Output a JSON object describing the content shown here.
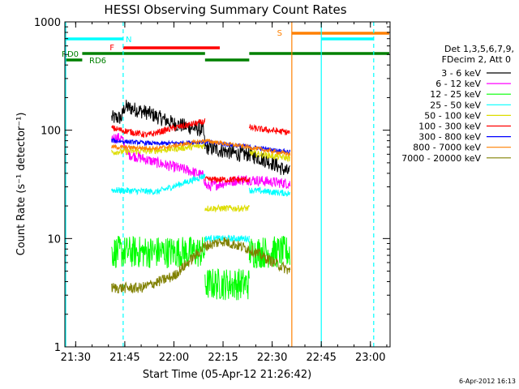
{
  "chart_data": {
    "type": "line",
    "title": "HESSI Observing Summary Count Rates",
    "xlabel": "Start Time (05-Apr-12 21:26:42)",
    "ylabel": "Count Rate (s⁻¹ detector⁻¹)",
    "y_scale": "log",
    "ylim": [
      1,
      1000
    ],
    "x_range_minutes": [
      "21:26:42",
      "23:06:00"
    ],
    "x_ticks": [
      "21:30",
      "21:45",
      "22:00",
      "22:15",
      "22:30",
      "22:45",
      "23:00"
    ],
    "y_ticks": [
      "1",
      "10",
      "100",
      "1000"
    ],
    "legend_header": [
      "Det 1,3,5,6,7,9,",
      "FDecim 2, Att 0"
    ],
    "grid": false,
    "timestamp": "6-Apr-2012 16:13",
    "flag_labels": {
      "N": "N",
      "F": "F",
      "S": "S",
      "RD0": "RD0",
      "RD6": "RD6"
    },
    "flag_colors": {
      "N": "#00ffff",
      "F": "#ff0000",
      "S": "#ff8000",
      "RD": "#008000"
    },
    "flags": {
      "N": [
        [
          "21:26:42",
          "21:44:30"
        ],
        [
          "22:45:00",
          "23:01:00"
        ]
      ],
      "F": [
        [
          "21:44:30",
          "22:14:00"
        ]
      ],
      "S": [
        [
          "22:36:00",
          "23:06:00"
        ]
      ],
      "RD0": [
        [
          "21:32:00",
          "22:09:30"
        ],
        [
          "22:23:00",
          "23:06:00"
        ]
      ],
      "RD6": [
        [
          "21:26:42",
          "21:32:00"
        ],
        [
          "22:09:30",
          "22:23:00"
        ]
      ]
    },
    "vlines": [
      {
        "t": "21:26:42",
        "color": "#00ffff",
        "style": "solid"
      },
      {
        "t": "21:44:30",
        "color": "#00ffff",
        "style": "dashed"
      },
      {
        "t": "22:36:00",
        "color": "#ff8000",
        "style": "solid"
      },
      {
        "t": "22:45:00",
        "color": "#00ffff",
        "style": "solid"
      },
      {
        "t": "23:01:00",
        "color": "#00ffff",
        "style": "dashed"
      }
    ],
    "series": [
      {
        "name": "3 - 6 keV",
        "color": "#000000",
        "noise": 0.07,
        "segments": [
          {
            "t": [
              "21:41:00",
              "21:44:00",
              "21:45:00",
              "21:52:00",
              "22:00:00",
              "22:09:00",
              "22:09:30",
              "22:20:00",
              "22:23:00",
              "22:30:00",
              "22:35:30"
            ],
            "v": [
              130,
              130,
              165,
              145,
              115,
              100,
              70,
              60,
              60,
              50,
              40
            ]
          }
        ]
      },
      {
        "name": "6 - 12 keV",
        "color": "#ff00ff",
        "noise": 0.05,
        "segments": [
          {
            "t": [
              "21:41:00",
              "21:44:00",
              "21:46:00",
              "21:55:00",
              "22:05:00",
              "22:09:00",
              "22:10:00",
              "22:20:00",
              "22:23:00",
              "22:35:30"
            ],
            "v": [
              85,
              85,
              60,
              50,
              42,
              38,
              30,
              35,
              35,
              32
            ]
          }
        ]
      },
      {
        "name": "12 - 25 keV",
        "color": "#00ff00",
        "noise": 0.15,
        "segments": [
          {
            "t": [
              "21:41:00",
              "22:09:30"
            ],
            "v": [
              7.5,
              7.5
            ]
          },
          {
            "t": [
              "22:09:30",
              "22:23:00"
            ],
            "v": [
              3.8,
              3.8
            ]
          },
          {
            "t": [
              "22:23:00",
              "22:35:30"
            ],
            "v": [
              7.5,
              7.5
            ]
          }
        ]
      },
      {
        "name": "25 - 50 keV",
        "color": "#00ffff",
        "noise": 0.03,
        "segments": [
          {
            "t": [
              "21:41:00",
              "21:55:00",
              "22:09:30"
            ],
            "v": [
              28,
              27,
              38
            ]
          },
          {
            "t": [
              "22:09:30",
              "22:23:00"
            ],
            "v": [
              10,
              10
            ]
          },
          {
            "t": [
              "22:23:00",
              "22:35:30"
            ],
            "v": [
              28,
              26
            ]
          }
        ]
      },
      {
        "name": "50 - 100 keV",
        "color": "#dddd00",
        "noise": 0.03,
        "segments": [
          {
            "t": [
              "21:41:00",
              "21:55:00",
              "22:09:30"
            ],
            "v": [
              63,
              65,
              72
            ]
          },
          {
            "t": [
              "22:09:30",
              "22:23:00"
            ],
            "v": [
              19,
              19
            ]
          },
          {
            "t": [
              "22:23:00",
              "22:35:30"
            ],
            "v": [
              62,
              55
            ]
          }
        ]
      },
      {
        "name": "100 - 300 keV",
        "color": "#ff0000",
        "noise": 0.03,
        "segments": [
          {
            "t": [
              "21:41:00",
              "21:44:00",
              "21:52:00",
              "22:00:00",
              "22:09:30"
            ],
            "v": [
              105,
              100,
              90,
              105,
              120
            ]
          },
          {
            "t": [
              "22:09:30",
              "22:23:00"
            ],
            "v": [
              35,
              35
            ]
          },
          {
            "t": [
              "22:23:00",
              "22:35:30"
            ],
            "v": [
              105,
              95
            ]
          }
        ]
      },
      {
        "name": "300 - 800 keV",
        "color": "#0000ff",
        "noise": 0.02,
        "segments": [
          {
            "t": [
              "21:41:00",
              "21:55:00",
              "22:09:30",
              "22:20:00",
              "22:35:30"
            ],
            "v": [
              80,
              75,
              78,
              72,
              63
            ]
          }
        ]
      },
      {
        "name": "800 - 7000 keV",
        "color": "#ff8000",
        "noise": 0.02,
        "segments": [
          {
            "t": [
              "21:41:00",
              "21:55:00",
              "22:09:30",
              "22:20:00",
              "22:35:30"
            ],
            "v": [
              70,
              68,
              80,
              72,
              60
            ]
          }
        ]
      },
      {
        "name": "7000 - 20000 keV",
        "color": "#808000",
        "noise": 0.05,
        "segments": [
          {
            "t": [
              "21:41:00",
              "21:50:00",
              "22:00:00",
              "22:09:30",
              "22:15:00",
              "22:23:00",
              "22:35:30"
            ],
            "v": [
              3.5,
              3.5,
              4.5,
              8.5,
              9.5,
              8.0,
              5.0
            ]
          }
        ]
      }
    ]
  }
}
